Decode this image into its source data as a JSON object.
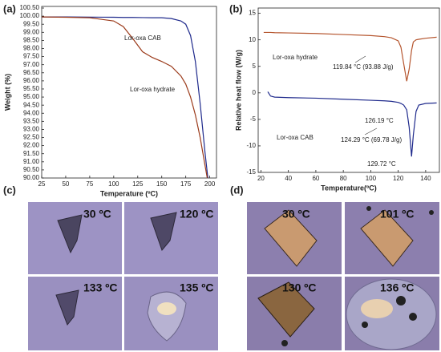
{
  "chart_data": [
    {
      "type": "line",
      "panel": "(a)",
      "xlabel": "Temperature (ºC)",
      "ylabel": "Weight (%)",
      "x": [
        25,
        50,
        75,
        100,
        110,
        120,
        130,
        140,
        150,
        160,
        170,
        175,
        180,
        185,
        190,
        195,
        198
      ],
      "series": [
        {
          "name": "Lor-oxa CAB",
          "color": "#1f2a8c",
          "values": [
            99.95,
            99.95,
            99.94,
            99.93,
            99.92,
            99.92,
            99.91,
            99.9,
            99.9,
            99.85,
            99.7,
            99.5,
            98.8,
            97.2,
            94.6,
            91.6,
            90.0
          ]
        },
        {
          "name": "Lor-oxa hydrate",
          "color": "#9b3a1a",
          "values": [
            99.95,
            99.93,
            99.9,
            99.7,
            99.35,
            98.6,
            97.8,
            97.45,
            97.2,
            96.9,
            96.3,
            95.8,
            95.0,
            93.9,
            92.5,
            90.8,
            89.8
          ]
        }
      ],
      "annotations": [
        {
          "text": "Lor-oxa CAB",
          "color": "#1f2a8c"
        },
        {
          "text": "Lor-oxa hydrate",
          "color": "#9b3a1a"
        }
      ],
      "xlim": [
        25,
        207
      ],
      "xticks": [
        25,
        50,
        75,
        100,
        125,
        150,
        175,
        200
      ],
      "ylim": [
        90,
        100.6
      ],
      "yticks": [
        {
          "value": 90,
          "label": "90.00"
        },
        {
          "value": 90.5,
          "label": "90.50"
        },
        {
          "value": 91,
          "label": "91.00"
        },
        {
          "value": 91.5,
          "label": "91.50"
        },
        {
          "value": 92,
          "label": "92.00"
        },
        {
          "value": 92.5,
          "label": "92.50"
        },
        {
          "value": 93,
          "label": "93.00"
        },
        {
          "value": 93.5,
          "label": "93.50"
        },
        {
          "value": 94,
          "label": "94.00"
        },
        {
          "value": 94.5,
          "label": "94.50"
        },
        {
          "value": 95,
          "label": "95.00"
        },
        {
          "value": 95.5,
          "label": "95.50"
        },
        {
          "value": 96,
          "label": "96.00"
        },
        {
          "value": 96.5,
          "label": "96.50"
        },
        {
          "value": 97,
          "label": "97.00"
        },
        {
          "value": 97.5,
          "label": "97.50"
        },
        {
          "value": 98,
          "label": "98.00"
        },
        {
          "value": 98.5,
          "label": "98.50"
        },
        {
          "value": 99,
          "label": "99.00"
        },
        {
          "value": 99.5,
          "label": "99.50"
        },
        {
          "value": 100,
          "label": "100.00"
        },
        {
          "value": 100.5,
          "label": "100.50"
        }
      ]
    },
    {
      "type": "line",
      "panel": "(b)",
      "xlabel": "Temperature(ºC)",
      "ylabel": "Relative heat flow (W/g)",
      "x": [
        22,
        25,
        27,
        30,
        40,
        60,
        80,
        100,
        110,
        115,
        120,
        122,
        124,
        126.19,
        128,
        129.72,
        131,
        133,
        135,
        140,
        148
      ],
      "series": [
        {
          "name": "Lor-oxa hydrate",
          "color": "#b5552e",
          "values": [
            11.4,
            11.4,
            11.4,
            11.35,
            11.3,
            11.2,
            11.0,
            10.8,
            10.6,
            10.4,
            9.8,
            8.6,
            5.5,
            2.2,
            4.5,
            8.0,
            9.6,
            10.0,
            10.1,
            10.3,
            10.5
          ]
        },
        {
          "name": "Lor-oxa CAB",
          "color": "#1f2a8c",
          "values": [
            null,
            0.2,
            -0.6,
            -0.8,
            -0.9,
            -1.0,
            -1.2,
            -1.4,
            -1.5,
            -1.6,
            -1.8,
            -2.0,
            -2.3,
            -3.2,
            -6.5,
            -12.0,
            -8.0,
            -3.5,
            -2.3,
            -2.0,
            -1.9
          ]
        }
      ],
      "annotations": [
        {
          "text": "Lor-oxa hydrate",
          "color": "#9b3a1a"
        },
        {
          "text": "119.84 °C (93.88 J/g)",
          "color": "#9b3a1a"
        },
        {
          "text": "126.19 °C",
          "color": "#9b3a1a"
        },
        {
          "text": "Lor-oxa CAB",
          "color": "#1f2a8c"
        },
        {
          "text": "124.29 °C (69.78 J/g)",
          "color": "#1f2a8c"
        },
        {
          "text": "129.72 °C",
          "color": "#1f2a8c"
        }
      ],
      "xlim": [
        18,
        150
      ],
      "xticks": [
        20,
        40,
        60,
        80,
        100,
        120,
        140
      ],
      "ylim": [
        -15,
        16
      ],
      "yticks": [
        -15,
        -10,
        -5,
        0,
        5,
        10,
        15
      ]
    }
  ],
  "micrographs": [
    {
      "panel": "(c)",
      "frames": [
        "30 ºC",
        "120 ºC",
        "133 ºC",
        "135 ºC"
      ]
    },
    {
      "panel": "(d)",
      "frames": [
        "30 ºC",
        "101 ºC",
        "130 ºC",
        "136 ºC"
      ]
    }
  ]
}
